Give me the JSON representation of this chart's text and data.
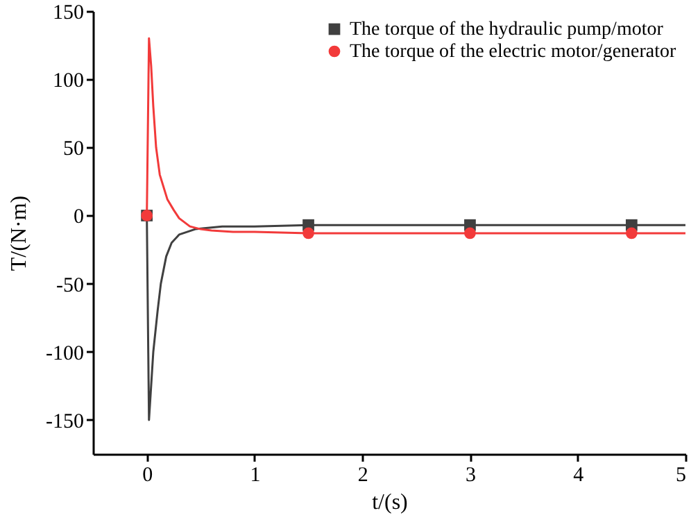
{
  "chart_data": {
    "type": "line",
    "xlabel": "t/(s)",
    "ylabel": "T/(N·m)",
    "xlim": [
      -0.5,
      5
    ],
    "xticks": [
      0,
      1,
      2,
      3,
      4,
      5
    ],
    "ylim": [
      -175,
      150
    ],
    "yticks": [
      -150,
      -100,
      -50,
      0,
      50,
      100,
      150
    ],
    "grid": false,
    "legend": "top right",
    "line_style": "solid",
    "series": [
      {
        "name": "The torque of the hydraulic pump/motor",
        "color": "#404040",
        "x": [
          0,
          0.02,
          0.04,
          0.06,
          0.1,
          0.13,
          0.18,
          0.23,
          0.3,
          0.45,
          0.7,
          1,
          1.5,
          2,
          3,
          4,
          4.5,
          5
        ],
        "values": [
          0,
          -150,
          -125,
          -100,
          -70,
          -50,
          -30,
          -20,
          -14,
          -10,
          -8,
          -8,
          -7,
          -7,
          -7,
          -7,
          -7,
          -7
        ]
      },
      {
        "name": "The torque of the electric motor/generator",
        "color": "#f23a3a",
        "x": [
          0,
          0.02,
          0.04,
          0.06,
          0.086,
          0.12,
          0.19,
          0.25,
          0.3,
          0.4,
          0.5,
          0.6,
          0.8,
          1,
          1.5,
          2,
          3,
          4,
          4.5,
          5
        ],
        "values": [
          0,
          130,
          110,
          80,
          50,
          30,
          12,
          4,
          -2,
          -8,
          -10,
          -11,
          -12,
          -12,
          -13,
          -13,
          -13,
          -13,
          -13,
          -13
        ]
      },
      {
        "type": "scatter",
        "color": "#404040",
        "marker": "square",
        "x": [
          0,
          1.5,
          3,
          4.5
        ],
        "values": [
          0,
          -7,
          -7,
          -7
        ]
      },
      {
        "type": "scatter",
        "color": "#f23a3a",
        "marker": "circle",
        "x": [
          0,
          1.5,
          3,
          4.5
        ],
        "values": [
          0,
          -13,
          -13,
          -13
        ]
      }
    ]
  }
}
